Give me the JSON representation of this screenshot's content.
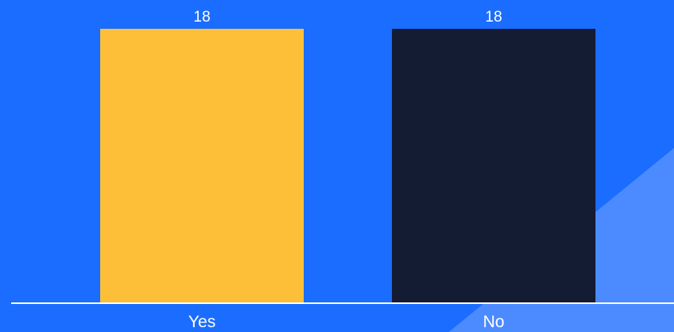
{
  "colors": {
    "background": "#1a6dff",
    "decoration": "#4b8bff",
    "baseline": "#ffffff",
    "text": "#ffffff"
  },
  "chart_data": {
    "type": "bar",
    "title": "",
    "xlabel": "",
    "ylabel": "",
    "categories": [
      "Yes",
      "No"
    ],
    "values": [
      18,
      18
    ],
    "bar_colors": [
      "#fdbf38",
      "#141c33"
    ],
    "value_labels": [
      "18",
      "18"
    ],
    "ylim": [
      0,
      18
    ],
    "grid": false,
    "legend": "none"
  }
}
